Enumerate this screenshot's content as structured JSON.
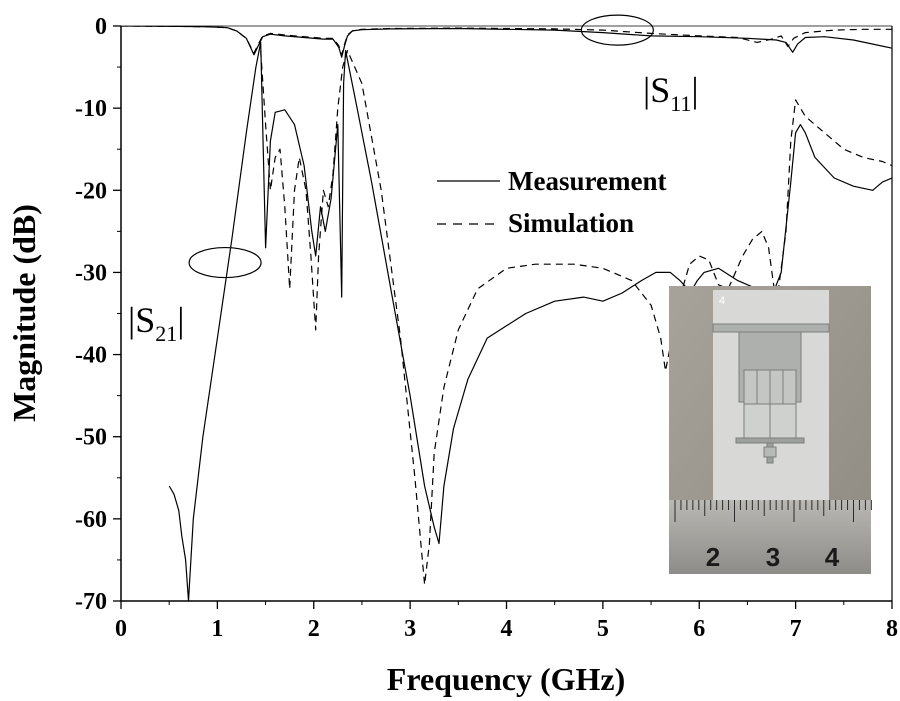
{
  "chart_data": {
    "type": "line",
    "title": "",
    "xlabel": "Frequency (GHz)",
    "ylabel": "Magnitude (dB)",
    "xlim": [
      0,
      8
    ],
    "ylim": [
      -70,
      0
    ],
    "xticks": [
      0,
      1,
      2,
      3,
      4,
      5,
      6,
      7,
      8
    ],
    "yticks": [
      0,
      -10,
      -20,
      -30,
      -40,
      -50,
      -60,
      -70
    ],
    "grid": false,
    "legend": {
      "position": "center-right",
      "entries": [
        {
          "label": "Measurement",
          "style": "solid"
        },
        {
          "label": "Simulation",
          "style": "dashed"
        }
      ]
    },
    "annotations": [
      {
        "text": "|S",
        "subscript": "11",
        "suffix": "|",
        "target": "S11 curves",
        "ellipse_at": [
          5.15,
          -0.5
        ]
      },
      {
        "text": "|S",
        "subscript": "21",
        "suffix": "|",
        "target": "S21 curves",
        "ellipse_at": [
          1.08,
          -28.8
        ]
      }
    ],
    "inset": {
      "description": "fabricated filter photograph with ruler",
      "ruler_numbers": [
        "2",
        "3",
        "4"
      ],
      "board_label": "4"
    },
    "series": [
      {
        "name": "S11 Measurement",
        "style": "solid",
        "x": [
          0.0,
          0.6,
          0.9,
          1.1,
          1.2,
          1.3,
          1.38,
          1.42,
          1.47,
          1.55,
          1.7,
          1.9,
          2.1,
          2.2,
          2.26,
          2.29,
          2.32,
          2.35,
          2.4,
          2.5,
          2.8,
          3.5,
          4.5,
          5.0,
          5.5,
          6.0,
          6.5,
          6.8,
          6.9,
          6.97,
          7.02,
          7.1,
          7.3,
          7.6,
          8.0
        ],
        "y": [
          0.0,
          -0.05,
          -0.1,
          -0.2,
          -0.6,
          -1.5,
          -3.5,
          -2.5,
          -1.3,
          -1.0,
          -1.2,
          -1.4,
          -1.6,
          -1.6,
          -2.6,
          -3.8,
          -2.4,
          -1.2,
          -0.6,
          -0.45,
          -0.35,
          -0.3,
          -0.5,
          -0.8,
          -1.2,
          -1.3,
          -1.5,
          -1.7,
          -2.0,
          -3.2,
          -2.2,
          -1.4,
          -1.3,
          -1.7,
          -2.7
        ]
      },
      {
        "name": "S11 Simulation",
        "style": "dashed",
        "x": [
          0.0,
          0.6,
          0.9,
          1.1,
          1.2,
          1.3,
          1.38,
          1.42,
          1.47,
          1.55,
          1.7,
          1.9,
          2.1,
          2.2,
          2.26,
          2.29,
          2.32,
          2.35,
          2.4,
          2.5,
          2.8,
          3.5,
          4.5,
          5.0,
          5.5,
          6.0,
          6.4,
          6.6,
          6.75,
          6.85,
          6.92,
          6.98,
          7.1,
          7.4,
          7.7,
          8.0
        ],
        "y": [
          0.0,
          -0.05,
          -0.1,
          -0.2,
          -0.6,
          -1.5,
          -3.3,
          -2.3,
          -1.2,
          -0.9,
          -1.1,
          -1.3,
          -1.5,
          -1.5,
          -2.4,
          -3.5,
          -2.2,
          -1.1,
          -0.6,
          -0.4,
          -0.3,
          -0.25,
          -0.35,
          -0.5,
          -0.9,
          -1.2,
          -1.4,
          -2.0,
          -1.6,
          -1.2,
          -2.5,
          -1.5,
          -0.8,
          -0.5,
          -0.4,
          -0.4
        ]
      },
      {
        "name": "S21 Measurement",
        "style": "solid",
        "x": [
          0.5,
          0.55,
          0.6,
          0.63,
          0.67,
          0.7,
          0.75,
          0.85,
          1.0,
          1.15,
          1.3,
          1.4,
          1.45,
          1.5,
          1.55,
          1.6,
          1.7,
          1.8,
          1.9,
          1.98,
          2.02,
          2.07,
          2.12,
          2.18,
          2.25,
          2.29,
          2.31,
          2.33,
          2.45,
          2.6,
          2.8,
          3.0,
          3.15,
          3.25,
          3.3,
          3.35,
          3.45,
          3.6,
          3.8,
          4.0,
          4.2,
          4.5,
          4.8,
          5.0,
          5.2,
          5.4,
          5.55,
          5.7,
          5.8,
          5.88,
          5.93,
          5.98,
          6.05,
          6.2,
          6.4,
          6.6,
          6.75,
          6.85,
          6.95,
          7.0,
          7.05,
          7.1,
          7.2,
          7.4,
          7.6,
          7.8,
          7.9,
          8.0
        ],
        "y": [
          -56,
          -57,
          -59,
          -62,
          -65,
          -70,
          -60,
          -50,
          -38,
          -26,
          -13,
          -5,
          -2,
          -27,
          -14,
          -10.5,
          -10.2,
          -12,
          -17,
          -25,
          -28,
          -22,
          -25,
          -21,
          -12,
          -33,
          -7,
          -3,
          -10,
          -19,
          -32,
          -45,
          -56,
          -61,
          -63,
          -56,
          -49,
          -43,
          -38,
          -36.5,
          -35,
          -33.5,
          -33,
          -33.5,
          -32.5,
          -31,
          -30,
          -30,
          -31,
          -32,
          -32,
          -31,
          -30,
          -29.5,
          -31,
          -32,
          -33,
          -30,
          -19,
          -13,
          -12,
          -13,
          -16,
          -18.5,
          -19.5,
          -20,
          -19,
          -18.5
        ]
      },
      {
        "name": "S21 Simulation",
        "style": "dashed",
        "x": [
          1.45,
          1.5,
          1.55,
          1.6,
          1.65,
          1.7,
          1.75,
          1.8,
          1.85,
          1.92,
          1.97,
          2.02,
          2.05,
          2.1,
          2.15,
          2.2,
          2.25,
          2.3,
          2.35,
          2.5,
          2.7,
          2.9,
          3.05,
          3.15,
          3.2,
          3.25,
          3.35,
          3.5,
          3.7,
          4.0,
          4.3,
          4.7,
          5.0,
          5.3,
          5.5,
          5.6,
          5.65,
          5.7,
          5.8,
          5.9,
          6.0,
          6.1,
          6.2,
          6.3,
          6.45,
          6.55,
          6.65,
          6.72,
          6.8,
          6.9,
          6.95,
          7.0,
          7.1,
          7.3,
          7.5,
          7.7,
          7.9,
          8.0
        ],
        "y": [
          -3,
          -12,
          -20,
          -16,
          -15,
          -22,
          -32,
          -20,
          -16,
          -20,
          -28,
          -37,
          -28,
          -20,
          -22,
          -18,
          -10,
          -5,
          -3,
          -7,
          -20,
          -38,
          -55,
          -68,
          -63,
          -52,
          -44,
          -37,
          -32,
          -29.5,
          -29,
          -29,
          -29.5,
          -31,
          -34,
          -38,
          -42,
          -39,
          -33,
          -29,
          -28,
          -28.5,
          -31.5,
          -32,
          -28,
          -26,
          -25,
          -27,
          -34,
          -25,
          -14,
          -9,
          -11,
          -13,
          -15,
          -16,
          -16.5,
          -17
        ]
      }
    ]
  }
}
